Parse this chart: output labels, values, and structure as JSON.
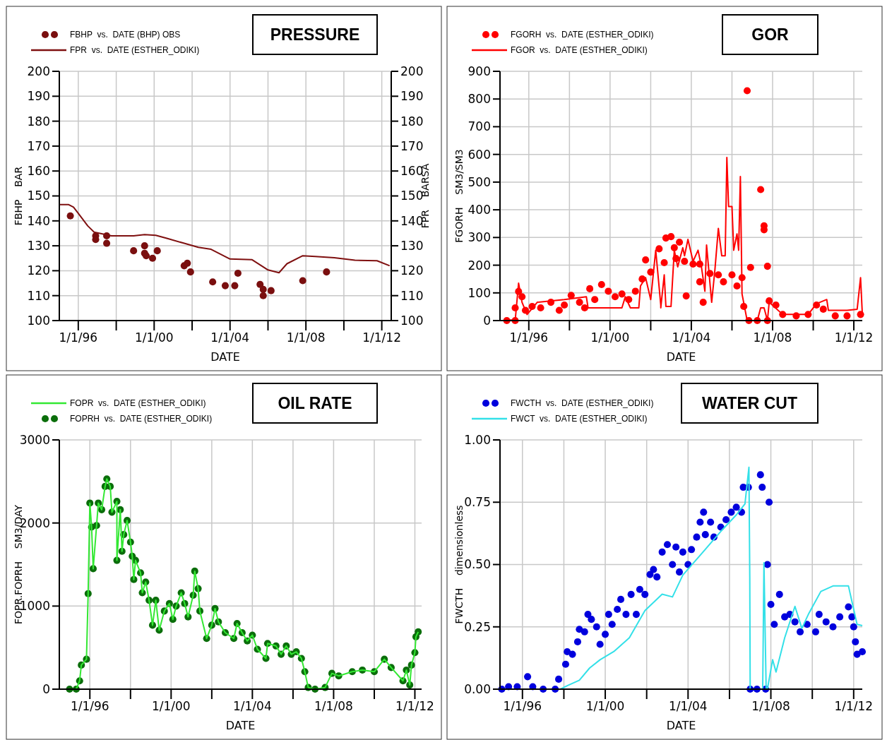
{
  "chart_data": [
    {
      "type": "scatter",
      "title": "PRESSURE",
      "xlabel": "DATE",
      "ylabel": "FBHP    BAR",
      "y2label": "FPR    BARSA",
      "grid": true,
      "legend": "top left",
      "xlim": [
        "1995-01",
        "2012-07"
      ],
      "xticks": [
        {
          "value": "1996-01-01",
          "label": "1/1/96"
        },
        {
          "value": "1998-01-01",
          "label": null
        },
        {
          "value": "2000-01-01",
          "label": "1/1/00"
        },
        {
          "value": "2002-01-01",
          "label": null
        },
        {
          "value": "2004-01-01",
          "label": "1/1/04"
        },
        {
          "value": "2006-01-01",
          "label": null
        },
        {
          "value": "2008-01-01",
          "label": "1/1/08"
        },
        {
          "value": "2010-01-01",
          "label": null
        },
        {
          "value": "2012-01-01",
          "label": "1/1/12"
        }
      ],
      "ylim": [
        100,
        200
      ],
      "yticks": [
        100,
        110,
        120,
        130,
        140,
        150,
        160,
        170,
        180,
        190,
        200
      ],
      "y2lim": [
        100,
        200
      ],
      "y2ticks": [
        100,
        110,
        120,
        130,
        140,
        150,
        160,
        170,
        180,
        190,
        200
      ],
      "series": [
        {
          "name": "FBHP  vs.  DATE (BHP) OBS",
          "type": "scatter",
          "marker": "circle",
          "color": "#7a0f0f",
          "x": [
            "1995-08",
            "1996-12",
            "1996-12",
            "1997-07",
            "1997-07",
            "1998-12",
            "1999-07",
            "1999-07",
            "1999-08",
            "1999-12",
            "2000-03",
            "2001-08",
            "2001-10",
            "2001-12",
            "2003-02",
            "2003-10",
            "2004-04",
            "2004-06",
            "2005-08",
            "2005-10",
            "2005-10",
            "2006-03",
            "2007-11",
            "2009-02"
          ],
          "values": [
            142,
            134,
            132.5,
            134,
            131,
            128,
            130,
            127,
            126,
            125,
            128,
            122,
            123,
            119.5,
            115.5,
            114,
            114,
            119,
            114.5,
            112.5,
            110,
            112,
            116,
            119.5
          ]
        },
        {
          "name": "FPR  vs.  DATE (ESTHER_ODIKI)",
          "type": "line",
          "color": "#7f1010",
          "x": [
            "1995-01",
            "1995-07",
            "1995-10",
            "1996-01",
            "1996-07",
            "1996-11",
            "1997-10",
            "1998-12",
            "1999-07",
            "2000-02",
            "2000-09",
            "2001-08",
            "2002-05",
            "2003-01",
            "2004-01",
            "2005-03",
            "2006-01",
            "2006-08",
            "2007-01",
            "2007-11",
            "2008-07",
            "2009-07",
            "2010-08",
            "2011-10",
            "2012-06"
          ],
          "values": [
            146.5,
            146.5,
            145.5,
            143,
            138,
            135.5,
            134,
            134,
            134.5,
            134.2,
            133,
            131,
            129.4,
            128.6,
            124.7,
            124.4,
            120.3,
            119.2,
            122.8,
            126,
            125.7,
            125.2,
            124.2,
            124,
            122
          ]
        }
      ]
    },
    {
      "type": "scatter",
      "title": "GOR",
      "xlabel": "DATE",
      "ylabel": "FGORH    SM3/SM3",
      "grid": true,
      "legend": "top left",
      "xlim": [
        "1994-08",
        "2012-06"
      ],
      "xticks": [
        {
          "value": "1996-01-01",
          "label": "1/1/96"
        },
        {
          "value": "1998-01-01",
          "label": null
        },
        {
          "value": "2000-01-01",
          "label": "1/1/00"
        },
        {
          "value": "2002-01-01",
          "label": null
        },
        {
          "value": "2004-01-01",
          "label": "1/1/04"
        },
        {
          "value": "2006-01-01",
          "label": null
        },
        {
          "value": "2008-01-01",
          "label": "1/1/08"
        },
        {
          "value": "2010-01-01",
          "label": null
        },
        {
          "value": "2012-01-01",
          "label": "1/1/12"
        }
      ],
      "ylim": [
        0,
        900
      ],
      "yticks": [
        0,
        100,
        200,
        300,
        400,
        500,
        600,
        700,
        800,
        900
      ],
      "series": [
        {
          "name": "FGORH  vs.  DATE (ESTHER_ODIKI)",
          "type": "scatter",
          "marker": "circle",
          "color": "#ff0000",
          "x": [
            "1994-12",
            "1995-05",
            "1995-05",
            "1995-07",
            "1995-09",
            "1995-11",
            "1996-03",
            "1996-08",
            "1997-02",
            "1997-07",
            "1997-10",
            "1998-02",
            "1998-07",
            "1998-10",
            "1999-01",
            "1999-04",
            "1999-08",
            "1999-12",
            "2000-04",
            "2000-08",
            "2000-12",
            "2001-04",
            "2001-08",
            "2001-10",
            "2002-01",
            "2002-06",
            "2002-09",
            "2002-10",
            "2003-01",
            "2003-03",
            "2003-06",
            "2003-04",
            "2003-09",
            "2003-10",
            "2004-02",
            "2004-06",
            "2004-06",
            "2004-08",
            "2004-12",
            "2005-05",
            "2005-08",
            "2006-01",
            "2006-04",
            "2006-07",
            "2006-08",
            "2006-10",
            "2006-11",
            "2006-12",
            "2007-04",
            "2007-06",
            "2007-08",
            "2007-08",
            "2007-10",
            "2007-10",
            "2007-11",
            "2008-03",
            "2008-07",
            "2009-03",
            "2009-10",
            "2010-03",
            "2010-07",
            "2011-02",
            "2011-09",
            "2012-05"
          ],
          "values": [
            0,
            0,
            46,
            105,
            86,
            37,
            51,
            46,
            66,
            37,
            56,
            91,
            66,
            46,
            115,
            76,
            130,
            106,
            86,
            96,
            76,
            106,
            150,
            219,
            175,
            259,
            209,
            298,
            303,
            263,
            283,
            224,
            214,
            89,
            204,
            204,
            140,
            66,
            170,
            165,
            140,
            165,
            125,
            155,
            51,
            830,
            0,
            192,
            0,
            473,
            342,
            328,
            0,
            196,
            71,
            56,
            22,
            17,
            22,
            56,
            41,
            17,
            17,
            22
          ]
        },
        {
          "name": "FGOR  vs.  DATE (ESTHER_ODIKI)",
          "type": "line",
          "color": "#ff0000",
          "x": [
            "1994-11",
            "1995-03",
            "1995-05",
            "1995-07",
            "1995-09",
            "1995-12",
            "1996-06",
            "1997-10",
            "1998-11",
            "1998-12",
            "2000-08",
            "2000-10",
            "2001-01",
            "2001-06",
            "2001-07",
            "2001-10",
            "2002-01",
            "2002-04",
            "2002-07",
            "2002-07",
            "2002-09",
            "2002-10",
            "2003-01",
            "2003-03",
            "2003-05",
            "2003-08",
            "2003-09",
            "2003-11",
            "2004-02",
            "2004-05",
            "2004-07",
            "2004-09",
            "2004-10",
            "2004-12",
            "2005-01",
            "2005-03",
            "2005-05",
            "2005-07",
            "2005-09",
            "2005-10",
            "2005-11",
            "2006-01",
            "2006-02",
            "2006-04",
            "2006-05",
            "2006-06",
            "2006-07",
            "2006-10",
            "2007-04",
            "2007-06",
            "2007-08",
            "2007-10",
            "2007-11",
            "2008-07",
            "2009-10",
            "2010-03",
            "2010-09",
            "2010-10",
            "2011-09",
            "2012-03",
            "2012-05",
            "2012-06"
          ],
          "values": [
            2,
            2,
            0,
            135,
            66,
            22,
            66,
            76,
            86,
            46,
            46,
            86,
            46,
            46,
            125,
            155,
            76,
            254,
            56,
            46,
            165,
            51,
            51,
            254,
            194,
            263,
            234,
            293,
            214,
            254,
            194,
            106,
            273,
            135,
            66,
            185,
            333,
            234,
            234,
            589,
            412,
            412,
            254,
            313,
            254,
            520,
            96,
            0,
            0,
            46,
            46,
            0,
            66,
            22,
            22,
            61,
            76,
            37,
            37,
            41,
            155,
            27
          ]
        }
      ]
    },
    {
      "type": "scatter",
      "title": "OIL RATE",
      "xlabel": "DATE",
      "ylabel": "FOPR.FOPRH    SM3/DAY",
      "grid": true,
      "legend": "top left",
      "xlim": [
        "1994-07",
        "2012-05"
      ],
      "xticks": [
        {
          "value": "1996-01-01",
          "label": "1/1/96"
        },
        {
          "value": "1998-01-01",
          "label": null
        },
        {
          "value": "2000-01-01",
          "label": "1/1/00"
        },
        {
          "value": "2002-01-01",
          "label": null
        },
        {
          "value": "2004-01-01",
          "label": "1/1/04"
        },
        {
          "value": "2006-01-01",
          "label": null
        },
        {
          "value": "2008-01-01",
          "label": "1/1/08"
        },
        {
          "value": "2010-01-01",
          "label": null
        },
        {
          "value": "2012-01-01",
          "label": "1/1/12"
        }
      ],
      "ylim": [
        0,
        3000
      ],
      "yticks": [
        0,
        1000,
        2000,
        3000
      ],
      "series": [
        {
          "name": "FOPR  vs.  DATE (ESTHER_ODIKI)",
          "type": "line",
          "color": "#33e833",
          "x": [
            "1995-05",
            "1995-07",
            "1995-08",
            "1995-11",
            "1995-12",
            "1996-01",
            "1996-02",
            "1996-03",
            "1996-05",
            "1996-06",
            "1996-08",
            "1996-10",
            "1996-11",
            "1997-01",
            "1997-02",
            "1997-05",
            "1997-05",
            "1997-07",
            "1997-08",
            "1997-09",
            "1997-11",
            "1998-01",
            "1998-02",
            "1998-03",
            "1998-04",
            "1998-07",
            "1998-08",
            "1998-10",
            "1998-12",
            "1999-02",
            "1999-04",
            "1999-06",
            "1999-09",
            "1999-12",
            "2000-02",
            "2000-04",
            "2000-07",
            "2000-09",
            "2000-11",
            "2001-02",
            "2001-03",
            "2001-05",
            "2001-06",
            "2001-10",
            "2002-01",
            "2002-03",
            "2002-05",
            "2002-09",
            "2003-02",
            "2003-04",
            "2003-07",
            "2003-10",
            "2004-01",
            "2004-04",
            "2004-09",
            "2004-10",
            "2005-03",
            "2005-06",
            "2005-09",
            "2005-12",
            "2006-03",
            "2006-06",
            "2006-08",
            "2006-10",
            "2007-02",
            "2007-08",
            "2007-12",
            "2008-04",
            "2008-12",
            "2009-06",
            "2010-01",
            "2010-07",
            "2010-11",
            "2011-06",
            "2011-08",
            "2011-10",
            "2011-11",
            "2012-01-01",
            "2012-01-20",
            "2012-03"
          ],
          "values": [
            0,
            100,
            290,
            360,
            1150,
            2240,
            1950,
            1450,
            1970,
            2240,
            2160,
            2440,
            2530,
            2440,
            2130,
            2260,
            1550,
            2160,
            1660,
            1860,
            2030,
            1770,
            1600,
            1320,
            1550,
            1400,
            1160,
            1290,
            1070,
            770,
            1070,
            710,
            940,
            1030,
            840,
            1000,
            1160,
            1030,
            870,
            1130,
            1420,
            1210,
            940,
            610,
            770,
            970,
            810,
            680,
            610,
            790,
            680,
            580,
            650,
            480,
            370,
            550,
            520,
            420,
            520,
            420,
            450,
            370,
            210,
            20,
            0,
            20,
            190,
            160,
            210,
            230,
            210,
            360,
            260,
            100,
            230,
            50,
            290,
            440,
            630,
            690
          ]
        },
        {
          "name": "FOPRH  vs.  DATE (ESTHER_ODIKI)",
          "type": "scatter",
          "marker": "circle",
          "color": "#0b6e0b",
          "x": [
            "1995-01",
            "1995-05",
            "1995-07",
            "1995-08",
            "1995-11",
            "1995-12",
            "1996-01",
            "1996-02",
            "1996-03",
            "1996-05",
            "1996-06",
            "1996-08",
            "1996-10",
            "1996-11",
            "1997-01",
            "1997-02",
            "1997-05",
            "1997-05",
            "1997-07",
            "1997-08",
            "1997-09",
            "1997-11",
            "1998-01",
            "1998-02",
            "1998-03",
            "1998-04",
            "1998-07",
            "1998-08",
            "1998-10",
            "1998-12",
            "1999-02",
            "1999-04",
            "1999-06",
            "1999-09",
            "1999-12",
            "2000-02",
            "2000-04",
            "2000-07",
            "2000-09",
            "2000-11",
            "2001-02",
            "2001-03",
            "2001-05",
            "2001-06",
            "2001-10",
            "2002-01",
            "2002-03",
            "2002-05",
            "2002-09",
            "2003-02",
            "2003-04",
            "2003-07",
            "2003-10",
            "2004-01",
            "2004-04",
            "2004-09",
            "2004-10",
            "2005-03",
            "2005-06",
            "2005-09",
            "2005-12",
            "2006-03",
            "2006-06",
            "2006-08",
            "2006-10",
            "2007-02",
            "2007-08",
            "2007-12",
            "2008-04",
            "2008-12",
            "2009-06",
            "2010-01",
            "2010-07",
            "2010-11",
            "2011-06",
            "2011-08",
            "2011-10",
            "2011-11",
            "2012-01-01",
            "2012-01-20",
            "2012-03"
          ],
          "values": [
            0,
            0,
            100,
            290,
            360,
            1150,
            2240,
            1950,
            1450,
            1970,
            2240,
            2160,
            2440,
            2530,
            2440,
            2130,
            2260,
            1550,
            2160,
            1660,
            1860,
            2030,
            1770,
            1600,
            1320,
            1550,
            1400,
            1160,
            1290,
            1070,
            770,
            1070,
            710,
            940,
            1030,
            840,
            1000,
            1160,
            1030,
            870,
            1130,
            1420,
            1210,
            940,
            610,
            770,
            970,
            810,
            680,
            610,
            790,
            680,
            580,
            650,
            480,
            370,
            550,
            520,
            420,
            520,
            420,
            450,
            370,
            210,
            20,
            0,
            20,
            190,
            160,
            210,
            230,
            210,
            360,
            260,
            100,
            230,
            50,
            290,
            440,
            630,
            690
          ]
        }
      ]
    },
    {
      "type": "scatter",
      "title": "WATER CUT",
      "xlabel": "DATE",
      "ylabel": "FWCTH    dimensionless",
      "grid": true,
      "legend": "top left",
      "xlim": [
        "1994-12",
        "2012-06"
      ],
      "xticks": [
        {
          "value": "1996-01-01",
          "label": "1/1/96"
        },
        {
          "value": "1998-01-01",
          "label": null
        },
        {
          "value": "2000-01-01",
          "label": "1/1/00"
        },
        {
          "value": "2002-01-01",
          "label": null
        },
        {
          "value": "2004-01-01",
          "label": "1/1/04"
        },
        {
          "value": "2006-01-01",
          "label": null
        },
        {
          "value": "2008-01-01",
          "label": "1/1/08"
        },
        {
          "value": "2010-01-01",
          "label": null
        },
        {
          "value": "2012-01-01",
          "label": "1/1/12"
        }
      ],
      "ylim": [
        0,
        1
      ],
      "yticks": [
        {
          "value": 0,
          "label": "0.00"
        },
        {
          "value": 0.25,
          "label": "0.25"
        },
        {
          "value": 0.5,
          "label": "0.50"
        },
        {
          "value": 0.75,
          "label": "0.75"
        },
        {
          "value": 1,
          "label": "1.00"
        }
      ],
      "series": [
        {
          "name": "FWCTH  vs.  DATE (ESTHER_ODIKI)",
          "type": "scatter",
          "marker": "circle",
          "color": "#0000dd",
          "x": [
            "1995-01",
            "1995-05",
            "1995-10",
            "1996-04",
            "1996-07",
            "1997-01",
            "1997-08",
            "1997-10",
            "1998-02",
            "1998-03",
            "1998-06",
            "1998-09",
            "1998-10",
            "1999-01",
            "1999-03",
            "1999-05",
            "1999-08",
            "1999-10",
            "2000-01",
            "2000-03",
            "2000-05",
            "2000-08",
            "2000-10",
            "2001-01",
            "2001-04",
            "2001-07",
            "2001-09",
            "2001-12",
            "2002-03",
            "2002-05",
            "2002-07",
            "2002-10",
            "2003-01",
            "2003-04",
            "2003-06",
            "2003-08",
            "2003-10",
            "2004-01",
            "2004-03",
            "2004-06",
            "2004-08",
            "2004-10",
            "2004-11",
            "2005-02",
            "2005-04",
            "2005-08",
            "2005-11",
            "2006-02",
            "2006-05",
            "2006-08",
            "2006-09",
            "2006-12",
            "2007-01",
            "2007-05",
            "2007-07",
            "2007-08",
            "2007-10",
            "2007-11",
            "2007-12",
            "2008-01",
            "2008-03",
            "2008-06",
            "2008-09",
            "2008-12",
            "2009-03",
            "2009-06",
            "2009-10",
            "2010-03",
            "2010-05",
            "2010-09",
            "2011-01",
            "2011-05",
            "2011-10",
            "2011-12",
            "2012-01",
            "2012-02",
            "2012-03",
            "2012-06"
          ],
          "values": [
            0,
            0.01,
            0.01,
            0.05,
            0.01,
            0,
            0,
            0.04,
            0.1,
            0.15,
            0.14,
            0.19,
            0.24,
            0.23,
            0.3,
            0.28,
            0.25,
            0.18,
            0.22,
            0.3,
            0.26,
            0.32,
            0.36,
            0.3,
            0.38,
            0.3,
            0.4,
            0.38,
            0.46,
            0.48,
            0.45,
            0.55,
            0.58,
            0.5,
            0.57,
            0.47,
            0.55,
            0.5,
            0.56,
            0.61,
            0.67,
            0.71,
            0.62,
            0.67,
            0.61,
            0.65,
            0.68,
            0.71,
            0.73,
            0.71,
            0.81,
            0.81,
            0,
            0,
            0.86,
            0.81,
            0,
            0.5,
            0.75,
            0.34,
            0.26,
            0.38,
            0.29,
            0.3,
            0.27,
            0.23,
            0.26,
            0.23,
            0.3,
            0.27,
            0.25,
            0.29,
            0.33,
            0.29,
            0.25,
            0.19,
            0.14,
            0.15
          ]
        },
        {
          "name": "FWCT  vs.  DATE (ESTHER_ODIKI)",
          "type": "line",
          "color": "#33e0e8",
          "x": [
            "1994-12",
            "1997-11",
            "1998-03",
            "1998-10",
            "1999-04",
            "1999-10",
            "2000-06",
            "2001-03",
            "2001-12",
            "2002-10",
            "2003-04",
            "2003-10",
            "2004-09",
            "2005-08",
            "2006-05",
            "2006-10",
            "2006-12-10",
            "2006-12-25",
            "2007-01-01",
            "2007-08-10",
            "2007-09-01",
            "2007-10-10",
            "2007-11",
            "2008-02",
            "2008-04",
            "2008-09",
            "2009-03",
            "2009-07",
            "2009-11",
            "2010-06",
            "2011-01",
            "2011-10",
            "2012-03",
            "2012-06"
          ],
          "values": [
            0,
            0,
            0.014,
            0.036,
            0.085,
            0.118,
            0.151,
            0.206,
            0.315,
            0.381,
            0.37,
            0.458,
            0.545,
            0.633,
            0.699,
            0.743,
            0.89,
            0.447,
            0,
            0,
            0.507,
            0,
            0,
            0.118,
            0.069,
            0.206,
            0.332,
            0.244,
            0.304,
            0.392,
            0.414,
            0.414,
            0.26,
            0.255
          ]
        }
      ]
    }
  ]
}
